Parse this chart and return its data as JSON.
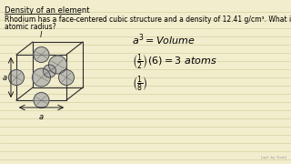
{
  "bg_color": "#f2edcd",
  "line_color": "#d4cfa0",
  "title": "Density of an element",
  "problem_line1": "Rhodium has a face-centered cubic structure and a density of 12.41 g/cm³. What is its",
  "problem_line2": "atomic radius?",
  "cube_color": "#2a2a2a",
  "atom_fill": "#999999",
  "atom_edge": "#333333",
  "title_fontsize": 6.0,
  "text_fontsize": 5.5,
  "formula_fontsize": 7.0
}
